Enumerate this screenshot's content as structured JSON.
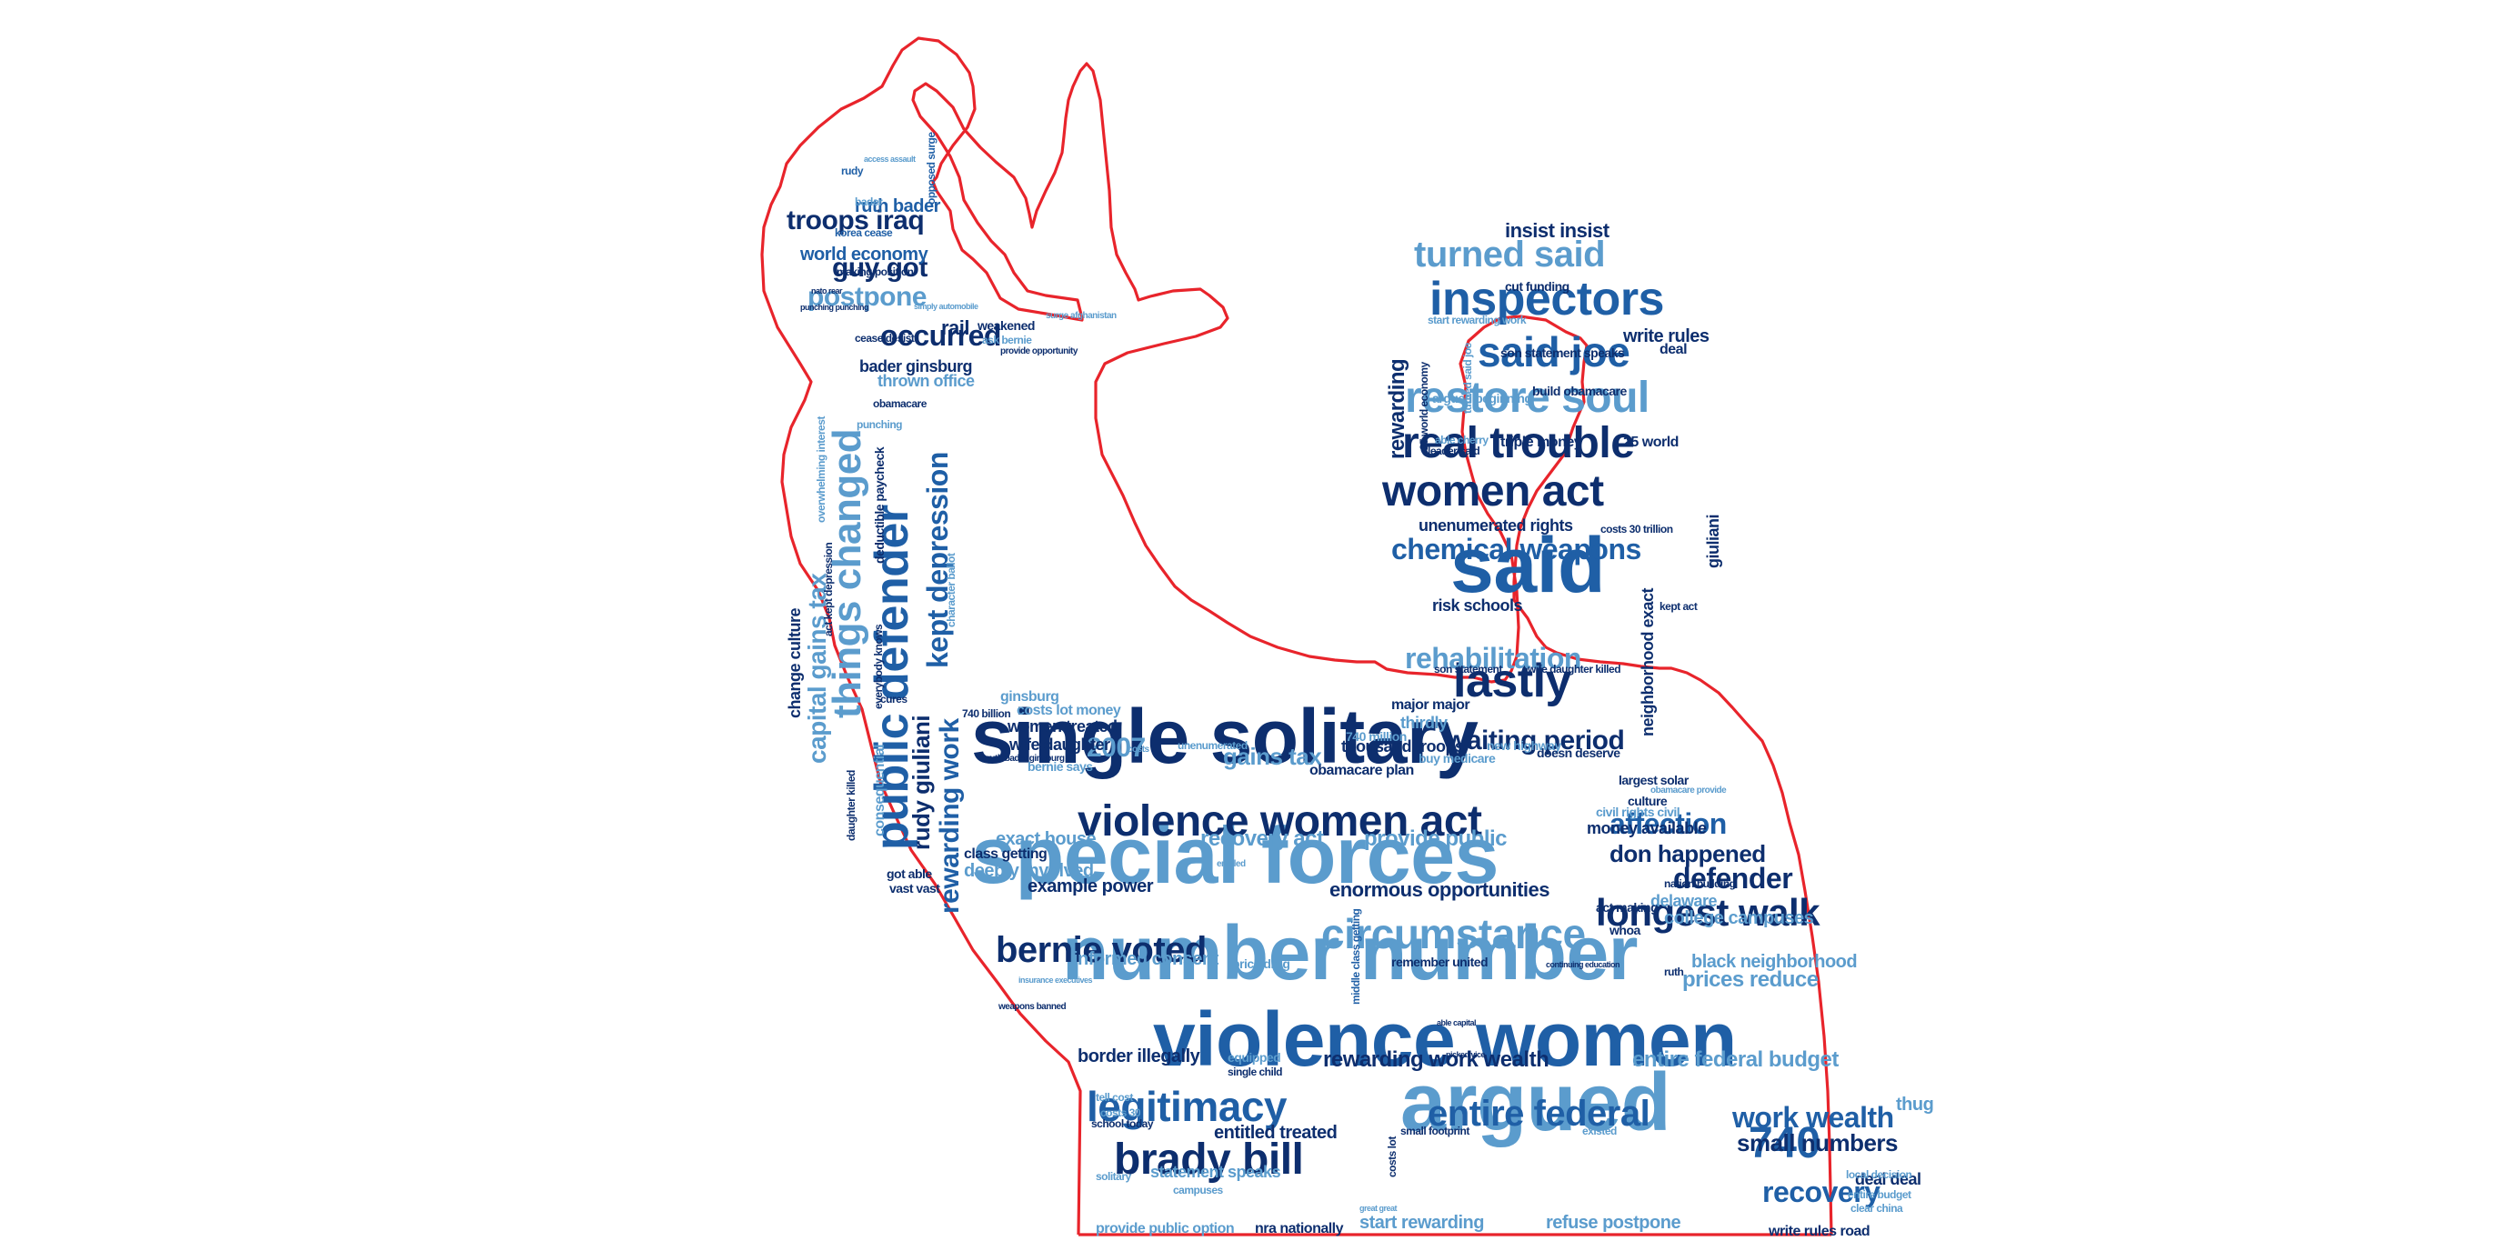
{
  "palette": {
    "outline": "#e8242b",
    "dark": "#0d2e6e",
    "mid": "#1f5fa6",
    "light": "#5b9ccd",
    "background": "#ffffff"
  },
  "words": [
    {
      "text": "single solitary",
      "c": "dark"
    },
    {
      "text": "special forces",
      "c": "light"
    },
    {
      "text": "number number",
      "c": "light"
    },
    {
      "text": "violence women",
      "c": "mid"
    },
    {
      "text": "argued",
      "c": "light"
    },
    {
      "text": "said",
      "c": "mid"
    },
    {
      "text": "violence women act",
      "c": "dark"
    },
    {
      "text": "brady bill",
      "c": "dark"
    },
    {
      "text": "legitimacy",
      "c": "mid"
    },
    {
      "text": "entire federal",
      "c": "mid"
    },
    {
      "text": "740",
      "c": "mid"
    },
    {
      "text": "recovery",
      "c": "mid"
    },
    {
      "text": "work wealth",
      "c": "mid"
    },
    {
      "text": "small numbers",
      "c": "dark"
    },
    {
      "text": "circumstance",
      "c": "light"
    },
    {
      "text": "bernie voted",
      "c": "dark"
    },
    {
      "text": "longest walk",
      "c": "dark"
    },
    {
      "text": "defender",
      "c": "dark"
    },
    {
      "text": "affection",
      "c": "mid"
    },
    {
      "text": "don happened",
      "c": "dark"
    },
    {
      "text": "lastly",
      "c": "dark"
    },
    {
      "text": "waiting period",
      "c": "dark"
    },
    {
      "text": "rehabilitation",
      "c": "light"
    },
    {
      "text": "chemical weapons",
      "c": "mid"
    },
    {
      "text": "women act",
      "c": "dark"
    },
    {
      "text": "real trouble",
      "c": "dark"
    },
    {
      "text": "restore soul",
      "c": "light"
    },
    {
      "text": "said joe",
      "c": "mid"
    },
    {
      "text": "inspectors",
      "c": "mid"
    },
    {
      "text": "turned said",
      "c": "light"
    },
    {
      "text": "insist insist",
      "c": "dark"
    },
    {
      "text": "write rules",
      "c": "dark"
    },
    {
      "text": "troops iraq",
      "c": "dark"
    },
    {
      "text": "guy got",
      "c": "dark"
    },
    {
      "text": "postpone",
      "c": "light"
    },
    {
      "text": "occurred",
      "c": "dark"
    },
    {
      "text": "ruth bader",
      "c": "mid"
    },
    {
      "text": "world economy",
      "c": "mid"
    },
    {
      "text": "bader ginsburg",
      "c": "dark"
    },
    {
      "text": "thrown office",
      "c": "light"
    },
    {
      "text": "rail",
      "c": "dark"
    },
    {
      "text": "public defender",
      "c": "mid"
    },
    {
      "text": "things changed",
      "c": "light"
    },
    {
      "text": "kept depression",
      "c": "mid"
    },
    {
      "text": "capital gains tax",
      "c": "light"
    },
    {
      "text": "rudy giuliani",
      "c": "dark"
    },
    {
      "text": "rewarding work",
      "c": "mid"
    },
    {
      "text": "2007",
      "c": "light"
    },
    {
      "text": "gains tax",
      "c": "light"
    },
    {
      "text": "recovery act",
      "c": "light"
    },
    {
      "text": "provide public",
      "c": "light"
    },
    {
      "text": "enormous opportunities",
      "c": "dark"
    },
    {
      "text": "example power",
      "c": "dark"
    },
    {
      "text": "informed consent",
      "c": "light"
    },
    {
      "text": "prices reduce",
      "c": "light"
    },
    {
      "text": "black neighborhood",
      "c": "light"
    },
    {
      "text": "college campuses",
      "c": "light"
    },
    {
      "text": "rewarding work wealth",
      "c": "dark"
    },
    {
      "text": "entire federal budget",
      "c": "light"
    },
    {
      "text": "border illegally",
      "c": "dark"
    },
    {
      "text": "entitled treated",
      "c": "dark"
    },
    {
      "text": "statement speaks",
      "c": "light"
    },
    {
      "text": "start rewarding",
      "c": "light"
    },
    {
      "text": "refuse postpone",
      "c": "light"
    },
    {
      "text": "nra nationally",
      "c": "dark"
    },
    {
      "text": "provide public option",
      "c": "light"
    },
    {
      "text": "write rules road",
      "c": "dark"
    },
    {
      "text": "deal deal",
      "c": "dark"
    },
    {
      "text": "thug",
      "c": "light"
    },
    {
      "text": "exact house",
      "c": "light"
    },
    {
      "text": "deeply involved",
      "c": "light"
    },
    {
      "text": "class getting",
      "c": "dark"
    },
    {
      "text": "women treated",
      "c": "dark"
    },
    {
      "text": "wife daughter",
      "c": "dark"
    },
    {
      "text": "costs lot money",
      "c": "light"
    },
    {
      "text": "ginsburg",
      "c": "light"
    },
    {
      "text": "bernie says",
      "c": "light"
    },
    {
      "text": "thousand troops",
      "c": "dark"
    },
    {
      "text": "thirdly",
      "c": "light"
    },
    {
      "text": "major major",
      "c": "dark"
    },
    {
      "text": "risk schools",
      "c": "dark"
    },
    {
      "text": "unenumerated rights",
      "c": "dark"
    },
    {
      "text": "rewarding",
      "c": "dark"
    },
    {
      "text": "giuliani",
      "c": "dark"
    },
    {
      "text": "neighborhood exact",
      "c": "dark"
    },
    {
      "text": "money available",
      "c": "dark"
    },
    {
      "text": "civil rights civil",
      "c": "light"
    },
    {
      "text": "largest solar",
      "c": "dark"
    },
    {
      "text": "delaware",
      "c": "light"
    },
    {
      "text": "change culture",
      "c": "dark"
    },
    {
      "text": "consequential",
      "c": "light"
    },
    {
      "text": "deductible paycheck",
      "c": "dark"
    },
    {
      "text": "got able",
      "c": "dark"
    },
    {
      "text": "vast vast",
      "c": "dark"
    },
    {
      "text": "obamacare plan",
      "c": "dark"
    },
    {
      "text": "buy medicare",
      "c": "light"
    },
    {
      "text": "new highway",
      "c": "light"
    },
    {
      "text": "doesn deserve",
      "c": "dark"
    },
    {
      "text": "price drug",
      "c": "light"
    },
    {
      "text": "remember united",
      "c": "dark"
    },
    {
      "text": "school today",
      "c": "dark"
    },
    {
      "text": "costs 30",
      "c": "light"
    },
    {
      "text": "tell cost",
      "c": "light"
    },
    {
      "text": "equipped",
      "c": "light"
    },
    {
      "text": "single child",
      "c": "dark"
    },
    {
      "text": "small footprint",
      "c": "dark"
    },
    {
      "text": "existed",
      "c": "light"
    },
    {
      "text": "costs lot",
      "c": "dark"
    },
    {
      "text": "solitary",
      "c": "light"
    },
    {
      "text": "triple money",
      "c": "dark"
    },
    {
      "text": "25 world",
      "c": "dark"
    },
    {
      "text": "deal",
      "c": "dark"
    },
    {
      "text": "build obamacare",
      "c": "dark"
    },
    {
      "text": "argued beginning",
      "c": "light"
    },
    {
      "text": "cut funding",
      "c": "dark"
    },
    {
      "text": "son statement speaks",
      "c": "dark"
    },
    {
      "text": "start rewarding work",
      "c": "light"
    },
    {
      "text": "act making",
      "c": "dark"
    },
    {
      "text": "nation building",
      "c": "dark"
    },
    {
      "text": "whoa",
      "c": "dark"
    },
    {
      "text": "ruth",
      "c": "dark"
    },
    {
      "text": "culture",
      "c": "dark"
    },
    {
      "text": "740 million",
      "c": "light"
    },
    {
      "text": "local decision",
      "c": "light"
    },
    {
      "text": "entire budget",
      "c": "light"
    },
    {
      "text": "clear china",
      "c": "light"
    },
    {
      "text": "making position",
      "c": "dark"
    },
    {
      "text": "korea cease",
      "c": "mid"
    },
    {
      "text": "rudy",
      "c": "mid"
    },
    {
      "text": "bader",
      "c": "light"
    },
    {
      "text": "weakened",
      "c": "dark"
    },
    {
      "text": "ask bernie",
      "c": "light"
    },
    {
      "text": "cease desist",
      "c": "dark"
    },
    {
      "text": "obamacare",
      "c": "dark"
    },
    {
      "text": "punching",
      "c": "light"
    },
    {
      "text": "opposed surge",
      "c": "mid"
    },
    {
      "text": "everybody knows",
      "c": "dark"
    },
    {
      "text": "character ballot",
      "c": "light"
    },
    {
      "text": "overwhelming interest",
      "c": "light"
    },
    {
      "text": "act kept depression",
      "c": "dark"
    },
    {
      "text": "daughter killed",
      "c": "dark"
    },
    {
      "text": "cures",
      "c": "dark"
    },
    {
      "text": "740 billion",
      "c": "dark"
    },
    {
      "text": "ruth bader ginsburg",
      "c": "dark"
    },
    {
      "text": "son statement",
      "c": "dark"
    },
    {
      "text": "wife daughter killed",
      "c": "dark"
    },
    {
      "text": "middle class getting",
      "c": "mid"
    },
    {
      "text": "25 world economy",
      "c": "dark"
    },
    {
      "text": "turned said joe",
      "c": "light"
    },
    {
      "text": "leader said",
      "c": "dark"
    },
    {
      "text": "able cherry",
      "c": "light"
    },
    {
      "text": "kept act",
      "c": "dark"
    },
    {
      "text": "costs 30 trillion",
      "c": "dark"
    },
    {
      "text": "unenumerated",
      "c": "light"
    },
    {
      "text": "obamacare provide",
      "c": "light"
    },
    {
      "text": "costs",
      "c": "light"
    },
    {
      "text": "weapons banned",
      "c": "dark"
    },
    {
      "text": "surge afghanistan",
      "c": "light"
    },
    {
      "text": "provide opportunity",
      "c": "dark"
    },
    {
      "text": "entitled",
      "c": "light"
    },
    {
      "text": "access assault",
      "c": "light"
    },
    {
      "text": "nato rear",
      "c": "dark"
    },
    {
      "text": "punching punching",
      "c": "dark"
    },
    {
      "text": "simply automobile",
      "c": "light"
    },
    {
      "text": "insurance executives",
      "c": "light"
    },
    {
      "text": "continuing education",
      "c": "dark"
    },
    {
      "text": "picked vice",
      "c": "dark"
    },
    {
      "text": "able capital",
      "c": "dark"
    },
    {
      "text": "great great",
      "c": "light"
    },
    {
      "text": "campuses",
      "c": "light"
    }
  ]
}
